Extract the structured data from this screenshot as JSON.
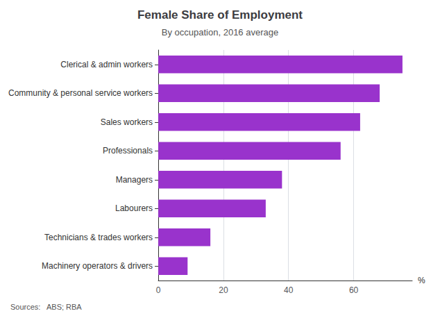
{
  "chart_data": {
    "type": "bar",
    "orientation": "horizontal",
    "title": "Female Share of Employment",
    "subtitle": "By occupation, 2016 average",
    "source": "Sources:   ABS; RBA",
    "xlabel": "%",
    "categories": [
      "Machinery operators & drivers",
      "Technicians & trades workers",
      "Labourers",
      "Managers",
      "Professionals",
      "Sales workers",
      "Community & personal service workers",
      "Clerical & admin workers"
    ],
    "values": [
      9,
      16,
      33,
      38,
      56,
      62,
      68,
      75
    ],
    "color": "#9933cc",
    "xlim": [
      0,
      78
    ],
    "xticks": [
      0,
      20,
      40,
      60
    ],
    "grid": true
  }
}
